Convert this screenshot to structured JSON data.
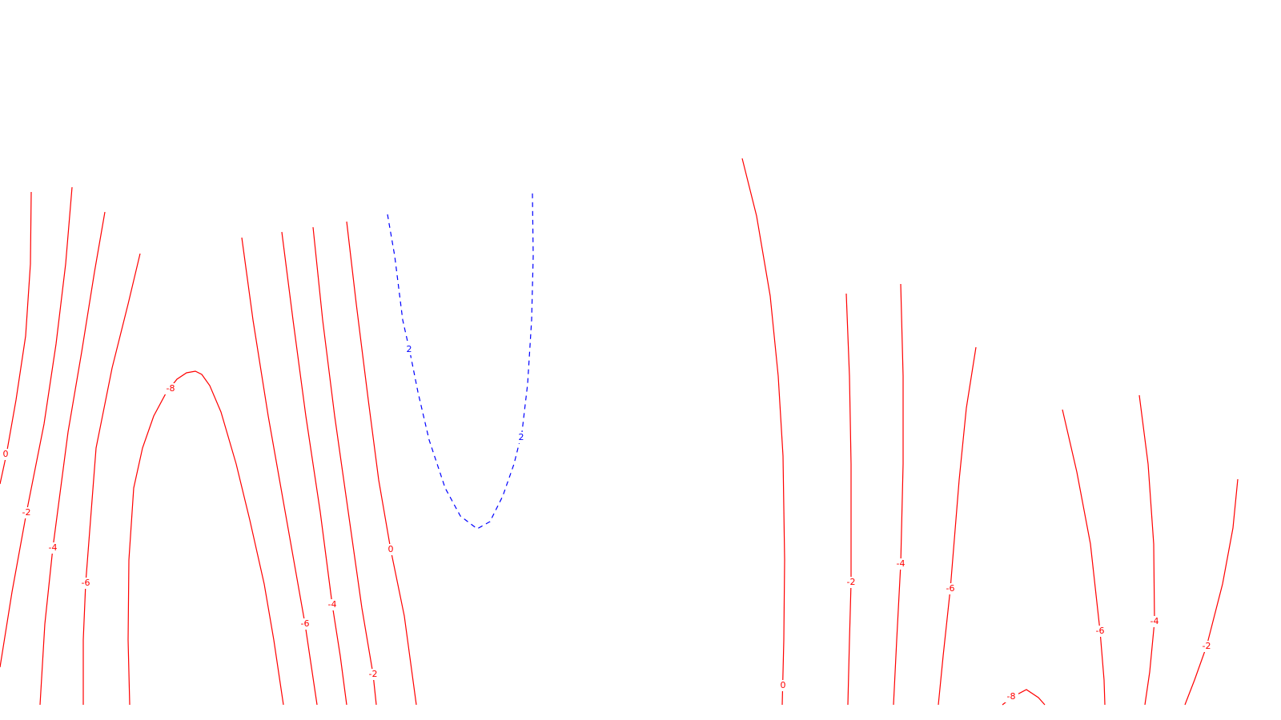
{
  "chart_data": {
    "type": "contour",
    "title": "",
    "xlabel": "",
    "ylabel": "",
    "grid": false,
    "legend": "none",
    "colors": {
      "negative": "#ff0000",
      "zero": "#ff0000",
      "positive": "#0000ff"
    },
    "contours": [
      {
        "level": "0",
        "dashed": false,
        "labels": [
          "0"
        ]
      },
      {
        "level": "-2",
        "dashed": false,
        "labels": [
          "-2"
        ]
      },
      {
        "level": "-4",
        "dashed": false,
        "labels": [
          "-4"
        ]
      },
      {
        "level": "-6",
        "dashed": false,
        "labels": [
          "-6"
        ]
      },
      {
        "level": "-8",
        "dashed": false,
        "labels": [
          "-8"
        ]
      },
      {
        "level": "-6",
        "dashed": false,
        "labels": [
          "-6"
        ]
      },
      {
        "level": "-4",
        "dashed": false,
        "labels": [
          "-4"
        ]
      },
      {
        "level": "-2",
        "dashed": false,
        "labels": [
          "-2"
        ]
      },
      {
        "level": "0",
        "dashed": false,
        "labels": [
          "0"
        ]
      },
      {
        "level": "2",
        "dashed": true,
        "labels": [
          "2",
          "2"
        ]
      },
      {
        "level": "0",
        "dashed": false,
        "labels": [
          "0"
        ]
      },
      {
        "level": "-2",
        "dashed": false,
        "labels": [
          "-2"
        ]
      },
      {
        "level": "-4",
        "dashed": false,
        "labels": [
          "-4"
        ]
      },
      {
        "level": "-6",
        "dashed": false,
        "labels": [
          "-6"
        ]
      },
      {
        "level": "-6",
        "dashed": false,
        "labels": [
          "-6"
        ]
      },
      {
        "level": "-4",
        "dashed": false,
        "labels": [
          "-4"
        ]
      },
      {
        "level": "-2",
        "dashed": false,
        "labels": [
          "-2"
        ]
      },
      {
        "level": "-8",
        "dashed": false,
        "labels": [
          "-8"
        ]
      }
    ]
  }
}
